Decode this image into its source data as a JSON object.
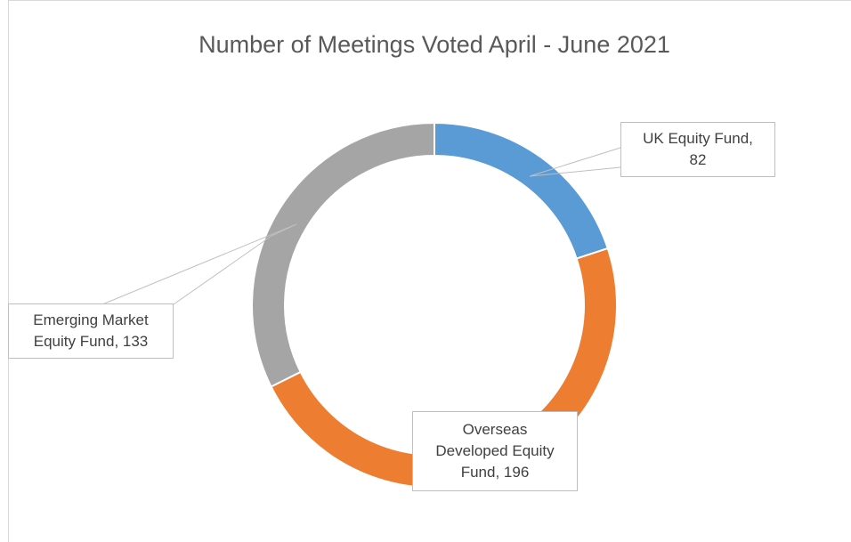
{
  "chart_data": {
    "type": "donut",
    "title": "Number of Meetings Voted April - June 2021",
    "categories": [
      "UK Equity Fund",
      "Overseas Developed Equity Fund",
      "Emerging Market Equity Fund"
    ],
    "values": [
      82,
      196,
      133
    ],
    "value_labels": [
      "UK Equity Fund, 82",
      "Overseas Developed Equity Fund, 196",
      "Emerging Market Equity Fund, 133"
    ],
    "colors": [
      "#5b9bd5",
      "#ed7d31",
      "#a5a5a5"
    ]
  }
}
